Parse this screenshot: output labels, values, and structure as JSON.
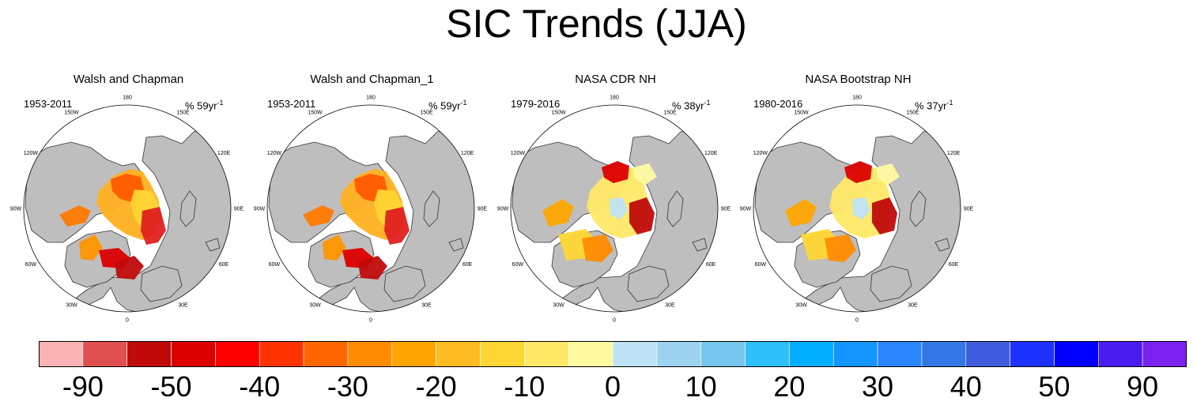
{
  "title": "SIC Trends (JJA)",
  "panels": [
    {
      "title": "Walsh and Chapman",
      "period": "1953-2011",
      "rate_prefix": "% 59yr",
      "rate_sup": "-1",
      "variant": "wc"
    },
    {
      "title": "Walsh and Chapman_1",
      "period": "1953-2011",
      "rate_prefix": "% 59yr",
      "rate_sup": "-1",
      "variant": "wc"
    },
    {
      "title": "NASA CDR NH",
      "period": "1979-2016",
      "rate_prefix": "% 38yr",
      "rate_sup": "-1",
      "variant": "nasa"
    },
    {
      "title": "NASA Bootstrap NH",
      "period": "1980-2016",
      "rate_prefix": "% 37yr",
      "rate_sup": "-1",
      "variant": "nasa"
    }
  ],
  "longitude_labels": [
    "180",
    "150E",
    "120E",
    "90E",
    "60E",
    "30E",
    "0",
    "30W",
    "60W",
    "90W",
    "120W",
    "150W"
  ],
  "colorbar": {
    "colors": [
      "#FBB3B6",
      "#E05050",
      "#C00A0A",
      "#DC0000",
      "#FF0000",
      "#FF3300",
      "#FF6600",
      "#FF8C00",
      "#FFA500",
      "#FFBB22",
      "#FFD633",
      "#FFE866",
      "#FFFAA0",
      "#BFE3F5",
      "#9ED3F0",
      "#77C6F0",
      "#2EC0FA",
      "#00AEFF",
      "#1496FF",
      "#2A86FF",
      "#3378E6",
      "#3F5CDC",
      "#1E32FF",
      "#0000FF",
      "#4A1CF0",
      "#7A22EE"
    ],
    "tick_labels": [
      "-90",
      "-50",
      "-40",
      "-30",
      "-20",
      "-10",
      "0",
      "10",
      "20",
      "30",
      "40",
      "50",
      "90"
    ]
  },
  "colors": {
    "land": "#BEBEBE",
    "coast": "#333333",
    "ocean": "#FFFFFF"
  }
}
